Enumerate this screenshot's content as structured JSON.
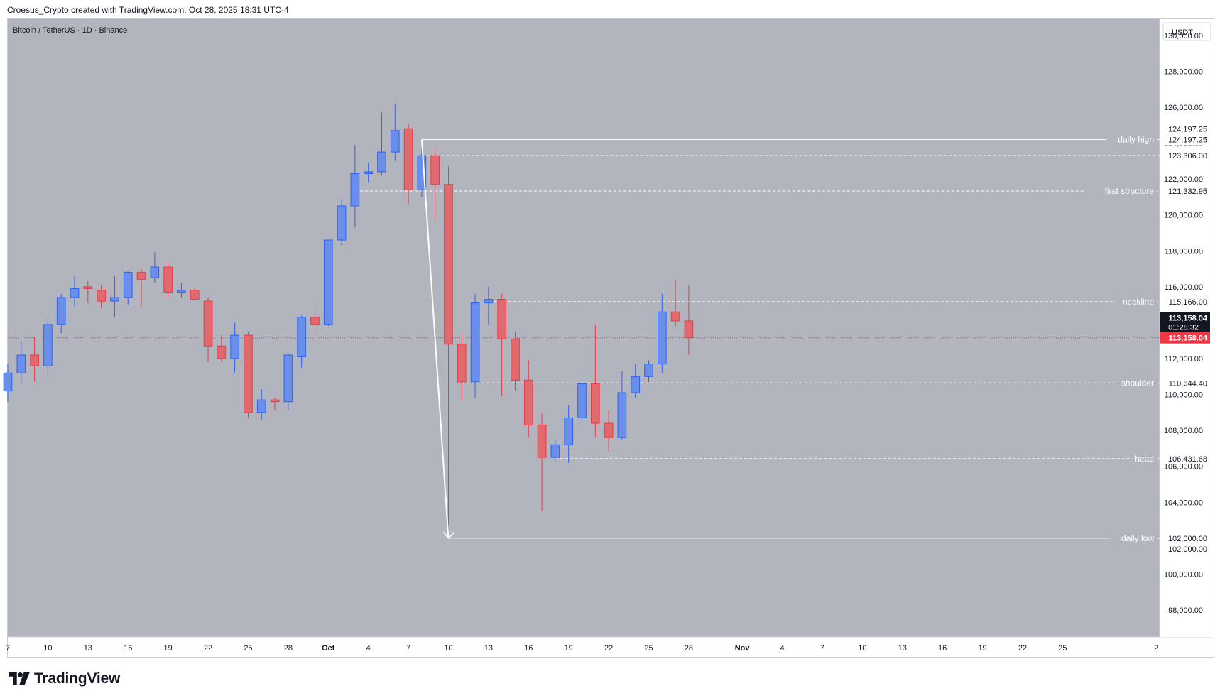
{
  "attribution": "Croesus_Crypto created with TradingView.com, Oct 28, 2025 18:31 UTC-4",
  "brand": {
    "name": "TradingView",
    "logo_icon": "tradingview-logo-icon"
  },
  "colors": {
    "plot_bg": "#b2b5be",
    "bull": "#6b8ee8",
    "bear": "#e06a6e",
    "bull_border": "#2962ff",
    "bear_border": "#f23645",
    "current_price": "#f23645",
    "line": "#ffffff"
  },
  "chart_data": {
    "type": "candlestick",
    "title": "Bitcoin / TetherUS · 1D · Binance",
    "currency": "USDT",
    "x_axis": {
      "range_start": "2025-09-07",
      "range_end": "2025-12-02",
      "ticks": [
        {
          "date": "2025-09-07",
          "label": "7"
        },
        {
          "date": "2025-09-10",
          "label": "10"
        },
        {
          "date": "2025-09-13",
          "label": "13"
        },
        {
          "date": "2025-09-16",
          "label": "16"
        },
        {
          "date": "2025-09-19",
          "label": "19"
        },
        {
          "date": "2025-09-22",
          "label": "22"
        },
        {
          "date": "2025-09-25",
          "label": "25"
        },
        {
          "date": "2025-09-28",
          "label": "28"
        },
        {
          "date": "2025-10-01",
          "label": "Oct"
        },
        {
          "date": "2025-10-04",
          "label": "4"
        },
        {
          "date": "2025-10-07",
          "label": "7"
        },
        {
          "date": "2025-10-10",
          "label": "10"
        },
        {
          "date": "2025-10-13",
          "label": "13"
        },
        {
          "date": "2025-10-16",
          "label": "16"
        },
        {
          "date": "2025-10-19",
          "label": "19"
        },
        {
          "date": "2025-10-22",
          "label": "22"
        },
        {
          "date": "2025-10-25",
          "label": "25"
        },
        {
          "date": "2025-10-28",
          "label": "28"
        },
        {
          "date": "2025-11-01",
          "label": "Nov"
        },
        {
          "date": "2025-11-04",
          "label": "4"
        },
        {
          "date": "2025-11-07",
          "label": "7"
        },
        {
          "date": "2025-11-10",
          "label": "10"
        },
        {
          "date": "2025-11-13",
          "label": "13"
        },
        {
          "date": "2025-11-16",
          "label": "16"
        },
        {
          "date": "2025-11-19",
          "label": "19"
        },
        {
          "date": "2025-11-22",
          "label": "22"
        },
        {
          "date": "2025-11-25",
          "label": "25"
        },
        {
          "date": "2025-12-02",
          "label": "2"
        }
      ]
    },
    "y_axis": {
      "ylim": [
        96500,
        130900
      ],
      "ticks": [
        98000,
        100000,
        102000,
        104000,
        106000,
        108000,
        110000,
        112000,
        114000,
        116000,
        118000,
        120000,
        122000,
        124000,
        126000,
        128000,
        130000
      ],
      "tick_labels": [
        "98,000.00",
        "100,000.00",
        "102,000.00",
        "104,000.00",
        "106,000.00",
        "108,000.00",
        "110,000.00",
        "112,000.00",
        "114,000.00",
        "116,000.00",
        "118,000.00",
        "120,000.00",
        "122,000.00",
        "124,000.00",
        "126,000.00",
        "128,000.00",
        "130,000.00"
      ]
    },
    "candles": [
      {
        "date": "2025-09-07",
        "o": 110200,
        "h": 111700,
        "l": 109600,
        "c": 111200
      },
      {
        "date": "2025-09-08",
        "o": 111200,
        "h": 112900,
        "l": 110600,
        "c": 112200
      },
      {
        "date": "2025-09-09",
        "o": 112200,
        "h": 113200,
        "l": 110700,
        "c": 111600
      },
      {
        "date": "2025-09-10",
        "o": 111600,
        "h": 114300,
        "l": 111000,
        "c": 113900
      },
      {
        "date": "2025-09-11",
        "o": 113900,
        "h": 115600,
        "l": 113400,
        "c": 115400
      },
      {
        "date": "2025-09-12",
        "o": 115400,
        "h": 116600,
        "l": 114900,
        "c": 115900
      },
      {
        "date": "2025-09-13",
        "o": 116000,
        "h": 116300,
        "l": 115100,
        "c": 115900
      },
      {
        "date": "2025-09-14",
        "o": 115800,
        "h": 116100,
        "l": 114800,
        "c": 115200
      },
      {
        "date": "2025-09-15",
        "o": 115200,
        "h": 116600,
        "l": 114300,
        "c": 115400
      },
      {
        "date": "2025-09-16",
        "o": 115400,
        "h": 116900,
        "l": 115000,
        "c": 116800
      },
      {
        "date": "2025-09-17",
        "o": 116800,
        "h": 117000,
        "l": 114900,
        "c": 116400
      },
      {
        "date": "2025-09-18",
        "o": 116500,
        "h": 117900,
        "l": 116200,
        "c": 117100
      },
      {
        "date": "2025-09-19",
        "o": 117100,
        "h": 117400,
        "l": 115400,
        "c": 115700
      },
      {
        "date": "2025-09-20",
        "o": 115700,
        "h": 116200,
        "l": 115400,
        "c": 115800
      },
      {
        "date": "2025-09-21",
        "o": 115800,
        "h": 115900,
        "l": 115200,
        "c": 115300
      },
      {
        "date": "2025-09-22",
        "o": 115200,
        "h": 115400,
        "l": 111800,
        "c": 112700
      },
      {
        "date": "2025-09-23",
        "o": 112700,
        "h": 113300,
        "l": 111800,
        "c": 112000
      },
      {
        "date": "2025-09-24",
        "o": 112000,
        "h": 114000,
        "l": 111200,
        "c": 113300
      },
      {
        "date": "2025-09-25",
        "o": 113300,
        "h": 113500,
        "l": 108700,
        "c": 109000
      },
      {
        "date": "2025-09-26",
        "o": 109000,
        "h": 110300,
        "l": 108600,
        "c": 109700
      },
      {
        "date": "2025-09-27",
        "o": 109700,
        "h": 109800,
        "l": 109100,
        "c": 109600
      },
      {
        "date": "2025-09-28",
        "o": 109600,
        "h": 112300,
        "l": 109100,
        "c": 112200
      },
      {
        "date": "2025-09-29",
        "o": 112100,
        "h": 114400,
        "l": 111500,
        "c": 114300
      },
      {
        "date": "2025-09-30",
        "o": 114300,
        "h": 114900,
        "l": 112700,
        "c": 113900
      },
      {
        "date": "2025-10-01",
        "o": 113900,
        "h": 118600,
        "l": 113800,
        "c": 118600
      },
      {
        "date": "2025-10-02",
        "o": 118600,
        "h": 120900,
        "l": 118300,
        "c": 120500
      },
      {
        "date": "2025-10-03",
        "o": 120500,
        "h": 123900,
        "l": 119300,
        "c": 122300
      },
      {
        "date": "2025-10-04",
        "o": 122300,
        "h": 122900,
        "l": 121800,
        "c": 122400
      },
      {
        "date": "2025-10-05",
        "o": 122400,
        "h": 125700,
        "l": 122200,
        "c": 123500
      },
      {
        "date": "2025-10-06",
        "o": 123500,
        "h": 126200,
        "l": 123000,
        "c": 124700
      },
      {
        "date": "2025-10-07",
        "o": 124800,
        "h": 125100,
        "l": 120600,
        "c": 121400
      },
      {
        "date": "2025-10-08",
        "o": 121400,
        "h": 124100,
        "l": 121000,
        "c": 123300
      },
      {
        "date": "2025-10-09",
        "o": 123300,
        "h": 123800,
        "l": 119700,
        "c": 121700
      },
      {
        "date": "2025-10-10",
        "o": 121700,
        "h": 122700,
        "l": 102000,
        "c": 112800
      },
      {
        "date": "2025-10-11",
        "o": 112800,
        "h": 113300,
        "l": 109700,
        "c": 110700
      },
      {
        "date": "2025-10-12",
        "o": 110700,
        "h": 115600,
        "l": 109800,
        "c": 115100
      },
      {
        "date": "2025-10-13",
        "o": 115100,
        "h": 116000,
        "l": 113900,
        "c": 115300
      },
      {
        "date": "2025-10-14",
        "o": 115300,
        "h": 115600,
        "l": 109900,
        "c": 113100
      },
      {
        "date": "2025-10-15",
        "o": 113100,
        "h": 113500,
        "l": 110200,
        "c": 110800
      },
      {
        "date": "2025-10-16",
        "o": 110800,
        "h": 111900,
        "l": 107600,
        "c": 108300
      },
      {
        "date": "2025-10-17",
        "o": 108300,
        "h": 109000,
        "l": 103500,
        "c": 106500
      },
      {
        "date": "2025-10-18",
        "o": 106500,
        "h": 107500,
        "l": 106300,
        "c": 107200
      },
      {
        "date": "2025-10-19",
        "o": 107200,
        "h": 109400,
        "l": 106200,
        "c": 108700
      },
      {
        "date": "2025-10-20",
        "o": 108700,
        "h": 111700,
        "l": 107500,
        "c": 110600
      },
      {
        "date": "2025-10-21",
        "o": 110600,
        "h": 113900,
        "l": 107600,
        "c": 108400
      },
      {
        "date": "2025-10-22",
        "o": 108400,
        "h": 109100,
        "l": 106800,
        "c": 107600
      },
      {
        "date": "2025-10-23",
        "o": 107600,
        "h": 111300,
        "l": 107500,
        "c": 110100
      },
      {
        "date": "2025-10-24",
        "o": 110100,
        "h": 111700,
        "l": 109800,
        "c": 111000
      },
      {
        "date": "2025-10-25",
        "o": 111000,
        "h": 111900,
        "l": 110700,
        "c": 111700
      },
      {
        "date": "2025-10-26",
        "o": 111700,
        "h": 115600,
        "l": 111200,
        "c": 114600
      },
      {
        "date": "2025-10-27",
        "o": 114600,
        "h": 116400,
        "l": 113800,
        "c": 114100
      },
      {
        "date": "2025-10-28",
        "o": 114100,
        "h": 116100,
        "l": 112200,
        "c": 113158.04
      }
    ],
    "levels": [
      {
        "price": 124197.25,
        "price_label": "124,197.25",
        "label": "daily high",
        "style": "solid",
        "start": "2025-10-08",
        "chip": "light"
      },
      {
        "price": 123306.0,
        "price_label": "123,306.00",
        "label": "",
        "style": "dashed",
        "start": "2025-10-08",
        "chip": "light"
      },
      {
        "price": 121332.95,
        "price_label": "121,332.95",
        "label": "first structure",
        "style": "dashed",
        "start": "2025-10-03",
        "chip": "light"
      },
      {
        "price": 115166.0,
        "price_label": "115,166.00",
        "label": "neckline",
        "style": "dashed",
        "start": "2025-10-13",
        "chip": "light"
      },
      {
        "price": 110644.4,
        "price_label": "110,644.40",
        "label": "shoulder",
        "style": "dashed",
        "start": "2025-10-11",
        "chip": "light"
      },
      {
        "price": 106431.68,
        "price_label": "106,431.68",
        "label": "head",
        "style": "dashed",
        "start": "2025-10-18",
        "chip": "light"
      },
      {
        "price": 102000.0,
        "price_label": "102,000.00",
        "label": "daily low",
        "style": "solid",
        "start": "2025-10-10",
        "chip": "light"
      }
    ],
    "extra_price_chips": [
      {
        "price": 124197.25,
        "text": "124,197.25",
        "offset": -1
      },
      {
        "price": 102000.0,
        "text": "102,000.00",
        "offset": 1
      }
    ],
    "current_price": {
      "price": 113158.04,
      "text": "113,158.04",
      "countdown": "01:28:32"
    },
    "arrow": {
      "from_date": "2025-10-08",
      "from_price": 124197.25,
      "to_date": "2025-10-10",
      "to_price": 102000
    }
  }
}
